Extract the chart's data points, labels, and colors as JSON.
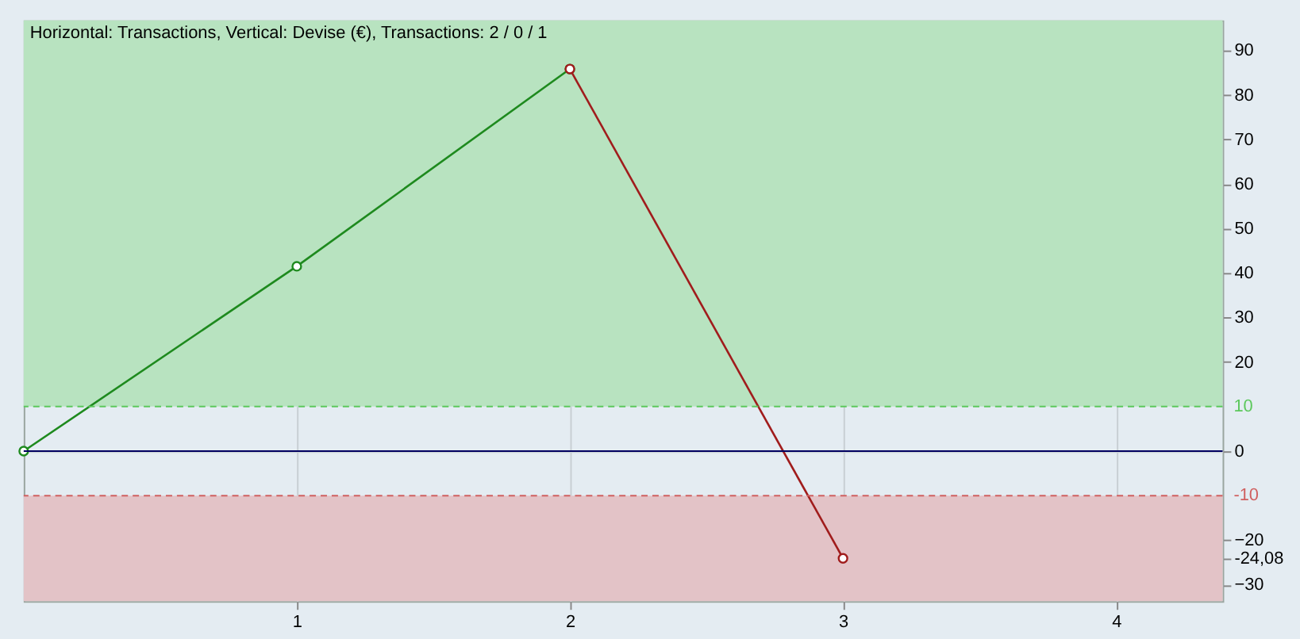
{
  "chart_data": {
    "type": "line",
    "title": "Horizontal: Transactions, Vertical: Devise (€), Transactions: 2 / 0 / 1",
    "series": [
      {
        "color": "#1e8a1e",
        "x": [
          0,
          1,
          2
        ],
        "values": [
          0,
          41.5,
          85.8
        ]
      },
      {
        "color": "#a01c1c",
        "x": [
          2,
          3
        ],
        "values": [
          85.8,
          -24.08
        ]
      }
    ],
    "xlim": [
      0,
      4.39
    ],
    "xticks": [
      1,
      2,
      3,
      4
    ],
    "ylim": [
      -33.7,
      96.7
    ],
    "yticks": [
      -30,
      {
        "value": -24.08,
        "label": "-24,08"
      },
      -20,
      0,
      20,
      30,
      40,
      50,
      60,
      70,
      80,
      90
    ],
    "bands": [
      {
        "axis": "y",
        "from": 10,
        "to": 96.7,
        "color": "#b8e3c0"
      },
      {
        "axis": "y",
        "from": -33.7,
        "to": -10,
        "color": "#e3c3c7"
      }
    ],
    "ref_lines": [
      {
        "axis": "y",
        "value": 10,
        "label": "10",
        "color": "#5cc85c",
        "line_style": "dashed"
      },
      {
        "axis": "y",
        "value": -10,
        "label": "-10",
        "color": "#d06060",
        "line_style": "dashed"
      },
      {
        "axis": "y",
        "value": 0,
        "color": "#000060",
        "line_style": "solid"
      }
    ],
    "grid": true,
    "marker": "circle",
    "line_style": "solid"
  }
}
